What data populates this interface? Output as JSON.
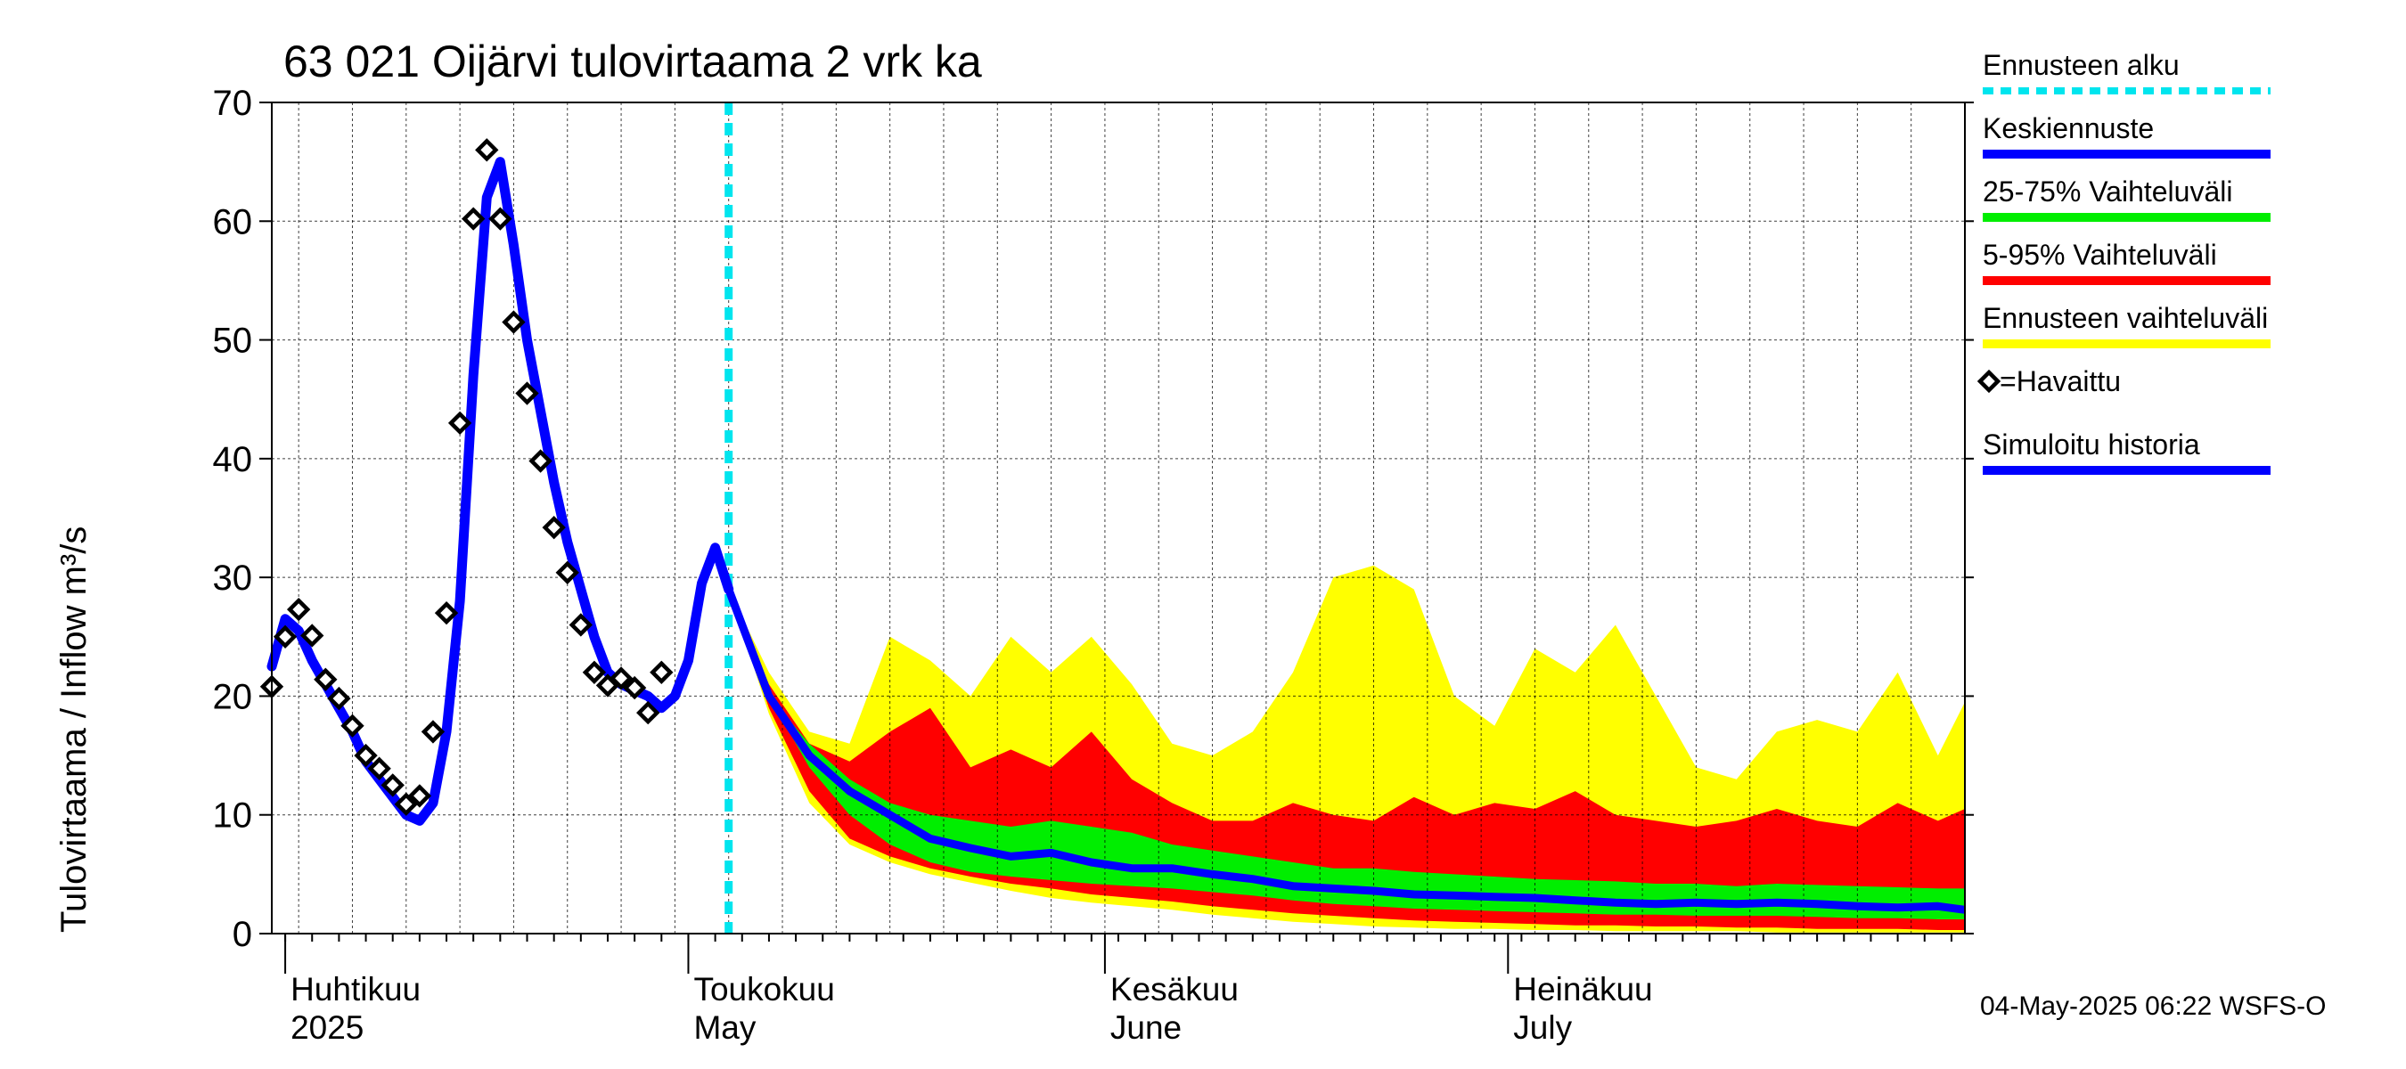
{
  "chart_data": {
    "type": "area",
    "title": "63 021 Oijärvi tulovirtaama 2 vrk ka",
    "ylabel": "Tulovirtaama / Inflow    m³/s",
    "ylim": [
      0,
      70
    ],
    "yticks": [
      0,
      10,
      20,
      30,
      40,
      50,
      60,
      70
    ],
    "xlim": [
      "2025-03-31",
      "2025-08-04"
    ],
    "grid": true,
    "legend_position": "right",
    "forecast_start": "2025-05-04",
    "months": [
      {
        "date": "2025-04-01",
        "fi": "Huhtikuu",
        "en": "2025"
      },
      {
        "date": "2025-05-01",
        "fi": "Toukokuu",
        "en": "May"
      },
      {
        "date": "2025-06-01",
        "fi": "Kesäkuu",
        "en": "June"
      },
      {
        "date": "2025-07-01",
        "fi": "Heinäkuu",
        "en": "July"
      }
    ],
    "colors": {
      "forecast_start": "#00e5ee",
      "median": "#0000ff",
      "band_25_75": "#00ee00",
      "band_5_95": "#ff0000",
      "band_full": "#ffff00",
      "observed": "#000000",
      "simulated": "#0000ff"
    },
    "legend": [
      {
        "label": "Ennusteen alku",
        "style": "dash",
        "color": "#00e5ee"
      },
      {
        "label": "Keskiennuste",
        "style": "line",
        "color": "#0000ff"
      },
      {
        "label": "25-75% Vaihteluväli",
        "style": "line",
        "color": "#00ee00"
      },
      {
        "label": "5-95% Vaihteluväli",
        "style": "line",
        "color": "#ff0000"
      },
      {
        "label": "Ennusteen vaihteluväli",
        "style": "line",
        "color": "#ffff00"
      },
      {
        "label": "=Havaittu",
        "style": "marker",
        "color": "#000000"
      },
      {
        "label": "Simuloitu historia",
        "style": "line",
        "color": "#0000ff"
      }
    ],
    "simulated_history": {
      "x": [
        "2025-03-31",
        "2025-04-01",
        "2025-04-02",
        "2025-04-03",
        "2025-04-04",
        "2025-04-05",
        "2025-04-06",
        "2025-04-07",
        "2025-04-08",
        "2025-04-09",
        "2025-04-10",
        "2025-04-11",
        "2025-04-12",
        "2025-04-13",
        "2025-04-14",
        "2025-04-15",
        "2025-04-16",
        "2025-04-17",
        "2025-04-18",
        "2025-04-19",
        "2025-04-20",
        "2025-04-21",
        "2025-04-22",
        "2025-04-23",
        "2025-04-24",
        "2025-04-25",
        "2025-04-26",
        "2025-04-27",
        "2025-04-28",
        "2025-04-29",
        "2025-04-30",
        "2025-05-01",
        "2025-05-02",
        "2025-05-03",
        "2025-05-04"
      ],
      "y": [
        22.5,
        26.5,
        25.5,
        23,
        21,
        19,
        17,
        14.5,
        13,
        11.5,
        10,
        9.5,
        11,
        17,
        28,
        47,
        62,
        65,
        58,
        50,
        44,
        38,
        33,
        29,
        25,
        22,
        21,
        20.5,
        20,
        19,
        20,
        23,
        29.5,
        32.5,
        29
      ]
    },
    "observed": {
      "x": [
        "2025-03-31",
        "2025-04-01",
        "2025-04-02",
        "2025-04-03",
        "2025-04-04",
        "2025-04-05",
        "2025-04-06",
        "2025-04-07",
        "2025-04-08",
        "2025-04-09",
        "2025-04-10",
        "2025-04-11",
        "2025-04-12",
        "2025-04-13",
        "2025-04-14",
        "2025-04-15",
        "2025-04-16",
        "2025-04-17",
        "2025-04-18",
        "2025-04-19",
        "2025-04-20",
        "2025-04-21",
        "2025-04-22",
        "2025-04-23",
        "2025-04-24",
        "2025-04-25",
        "2025-04-26",
        "2025-04-27",
        "2025-04-28",
        "2025-04-29",
        "2025-04-30"
      ],
      "y": [
        20.8,
        25,
        27.3,
        25.1,
        21.4,
        19.8,
        17.5,
        15,
        13.9,
        12.5,
        10.9,
        11.6,
        17,
        27,
        43,
        60.2,
        66,
        60.2,
        51.5,
        45.5,
        39.8,
        34.2,
        30.4,
        26,
        22,
        20.9,
        21.5,
        20.7,
        18.6,
        22,
        null
      ]
    },
    "forecast": {
      "x": [
        "2025-05-04",
        "2025-05-07",
        "2025-05-10",
        "2025-05-13",
        "2025-05-16",
        "2025-05-19",
        "2025-05-22",
        "2025-05-25",
        "2025-05-28",
        "2025-05-31",
        "2025-06-03",
        "2025-06-06",
        "2025-06-09",
        "2025-06-12",
        "2025-06-15",
        "2025-06-18",
        "2025-06-21",
        "2025-06-24",
        "2025-06-27",
        "2025-06-30",
        "2025-07-03",
        "2025-07-06",
        "2025-07-09",
        "2025-07-12",
        "2025-07-15",
        "2025-07-18",
        "2025-07-21",
        "2025-07-24",
        "2025-07-27",
        "2025-07-30",
        "2025-08-02",
        "2025-08-04"
      ],
      "median": [
        29,
        20,
        15,
        12,
        10,
        8,
        7.2,
        6.5,
        6.8,
        6,
        5.5,
        5.5,
        5,
        4.6,
        4,
        3.8,
        3.6,
        3.3,
        3.2,
        3.1,
        3.0,
        2.8,
        2.6,
        2.5,
        2.6,
        2.5,
        2.6,
        2.5,
        2.3,
        2.2,
        2.3,
        2.0
      ],
      "p25": [
        29,
        20,
        14,
        10,
        7.5,
        6,
        5.2,
        4.8,
        4.5,
        4.2,
        4,
        3.8,
        3.5,
        3.2,
        2.8,
        2.5,
        2.3,
        2.1,
        2,
        1.9,
        1.8,
        1.7,
        1.6,
        1.6,
        1.5,
        1.5,
        1.5,
        1.4,
        1.3,
        1.3,
        1.2,
        1.2
      ],
      "p75": [
        29,
        20,
        16,
        13,
        11,
        10,
        9.5,
        9,
        9.5,
        9,
        8.5,
        7.5,
        7,
        6.5,
        6,
        5.5,
        5.5,
        5.2,
        5,
        4.8,
        4.6,
        4.5,
        4.4,
        4.2,
        4.2,
        4.0,
        4.2,
        4.1,
        4.0,
        3.9,
        3.8,
        3.8
      ],
      "p5": [
        29,
        19,
        12,
        8,
        6.5,
        5.5,
        4.8,
        4.2,
        3.8,
        3.3,
        3,
        2.7,
        2.3,
        2,
        1.7,
        1.5,
        1.3,
        1.1,
        1.0,
        0.9,
        0.8,
        0.7,
        0.7,
        0.6,
        0.6,
        0.5,
        0.5,
        0.4,
        0.4,
        0.4,
        0.3,
        0.3
      ],
      "p95": [
        29,
        21,
        16,
        14.5,
        17,
        19,
        14,
        15.5,
        14,
        17,
        13,
        11,
        9.5,
        9.5,
        11,
        10,
        9.5,
        11.5,
        10,
        11,
        10.5,
        12,
        10,
        9.5,
        9,
        9.5,
        10.5,
        9.5,
        9,
        11,
        9.5,
        10.5
      ],
      "min": [
        29,
        18.5,
        11,
        7.5,
        6,
        5,
        4.3,
        3.6,
        3,
        2.6,
        2.3,
        2,
        1.6,
        1.3,
        1.0,
        0.8,
        0.6,
        0.5,
        0.4,
        0.4,
        0.3,
        0.3,
        0.2,
        0.2,
        0.2,
        0.2,
        0.1,
        0.1,
        0.1,
        0.1,
        0.1,
        0.1
      ],
      "max": [
        29,
        22,
        17,
        16,
        25,
        23,
        20,
        25,
        22,
        25,
        21,
        16,
        15,
        17,
        22,
        30,
        31,
        29,
        20,
        17.5,
        24,
        22,
        26,
        20,
        14,
        13,
        17,
        18,
        17,
        22,
        15,
        19.5
      ]
    }
  },
  "footer": {
    "timestamp": "04-May-2025 06:22 WSFS-O"
  }
}
